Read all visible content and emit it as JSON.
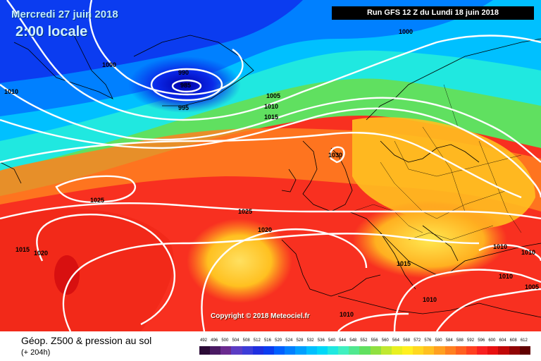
{
  "header": {
    "date": "Mercredi 27 juin 2018",
    "time": "2:00 locale",
    "run": "Run GFS 12 Z du Lundi 18 juin 2018"
  },
  "copyright": "Copyright © 2018 Meteociel.fr",
  "footer": {
    "title": "Géop. Z500 & pression au sol",
    "subtitle": "(+ 204h)"
  },
  "isobars": [
    "1000",
    "1000",
    "1010",
    "990",
    "985",
    "995",
    "1005",
    "1010",
    "1015",
    "1030",
    "1025",
    "1025",
    "1020",
    "1015",
    "1020",
    "1015",
    "1010",
    "1010",
    "1010",
    "1010",
    "1005"
  ],
  "scale": {
    "labels": [
      "492",
      "496",
      "500",
      "504",
      "508",
      "512",
      "516",
      "520",
      "524",
      "528",
      "532",
      "536",
      "540",
      "544",
      "548",
      "552",
      "556",
      "560",
      "564",
      "568",
      "572",
      "576",
      "580",
      "584",
      "588",
      "592",
      "596",
      "600",
      "604",
      "608",
      "612"
    ],
    "colors": [
      "#2b0b36",
      "#4a1a63",
      "#6a2a8f",
      "#5b3cc4",
      "#3c3cd8",
      "#1f2fe0",
      "#0b3cf0",
      "#0060ff",
      "#0080ff",
      "#00a0ff",
      "#00c0ff",
      "#00d8f8",
      "#20e8e0",
      "#40f0c0",
      "#50e890",
      "#60e060",
      "#90e040",
      "#c0e830",
      "#e8f020",
      "#fff020",
      "#ffd820",
      "#ffc020",
      "#ffa020",
      "#ff8020",
      "#ff6020",
      "#ff4020",
      "#f82020",
      "#e81010",
      "#c00808",
      "#900404",
      "#600000"
    ]
  }
}
